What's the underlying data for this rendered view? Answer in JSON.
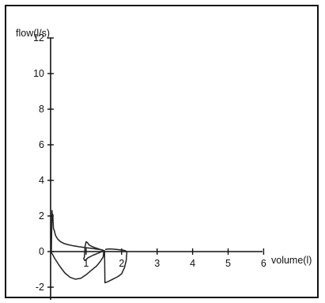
{
  "chart_data": {
    "type": "line",
    "title": "",
    "xlabel": "volume(l)",
    "ylabel": "flow(l/s)",
    "xlim": [
      0,
      6
    ],
    "ylim": [
      -3,
      12
    ],
    "x_ticks": [
      {
        "value": 1,
        "label": "1"
      },
      {
        "value": 2,
        "label": "2"
      },
      {
        "value": 3,
        "label": "3"
      },
      {
        "value": 4,
        "label": "4"
      },
      {
        "value": 5,
        "label": "5"
      },
      {
        "value": 6,
        "label": "6"
      }
    ],
    "y_ticks": [
      {
        "value": 12,
        "label": "12"
      },
      {
        "value": 10,
        "label": "10"
      },
      {
        "value": 8,
        "label": "8"
      },
      {
        "value": 6,
        "label": "6"
      },
      {
        "value": 4,
        "label": "4"
      },
      {
        "value": 2,
        "label": "2"
      },
      {
        "value": 0,
        "label": "0"
      },
      {
        "value": -2,
        "label": "-2"
      }
    ],
    "grid": false,
    "series": [
      {
        "color": "#222222",
        "x": [
          0.02,
          0.04,
          0.05,
          0.06,
          0.08,
          0.1,
          0.14,
          0.2,
          0.28,
          0.38,
          0.5,
          0.65,
          0.8,
          1.0,
          1.15,
          1.3,
          1.45,
          1.5,
          1.48,
          1.4,
          1.3,
          1.15,
          1.0,
          0.85,
          0.7,
          0.55,
          0.4,
          0.25,
          0.12,
          0.04,
          0.02
        ],
        "y": [
          -0.1,
          2.3,
          1.8,
          2.1,
          1.3,
          1.2,
          0.9,
          0.7,
          0.55,
          0.45,
          0.38,
          0.32,
          0.27,
          0.22,
          0.18,
          0.14,
          0.1,
          0.05,
          -0.3,
          -0.55,
          -0.8,
          -1.05,
          -1.3,
          -1.5,
          -1.55,
          -1.45,
          -1.2,
          -0.8,
          -0.4,
          -0.1,
          -0.1
        ]
      },
      {
        "color": "#222222",
        "x": [
          0.95,
          0.97,
          1.0,
          1.04,
          1.08,
          1.15,
          1.25,
          1.35,
          1.45,
          1.5,
          1.45,
          1.35,
          1.2,
          1.05,
          0.97,
          0.93,
          0.95
        ],
        "y": [
          -0.3,
          0.3,
          0.55,
          0.5,
          0.38,
          0.3,
          0.22,
          0.15,
          0.08,
          0.05,
          0.0,
          -0.08,
          -0.2,
          -0.35,
          -0.5,
          -0.4,
          -0.3
        ]
      },
      {
        "color": "#222222",
        "x": [
          1.5,
          1.52,
          1.53,
          1.6,
          1.75,
          1.9,
          2.0,
          2.08,
          2.13,
          2.15,
          2.1,
          2.05,
          1.95,
          1.85,
          1.75,
          1.65,
          1.55
        ],
        "y": [
          0.0,
          0.05,
          -1.75,
          -1.7,
          -1.55,
          -1.4,
          -1.25,
          -0.9,
          -0.5,
          0.0,
          0.05,
          0.08,
          0.1,
          0.12,
          0.14,
          0.15,
          0.12
        ]
      }
    ]
  }
}
